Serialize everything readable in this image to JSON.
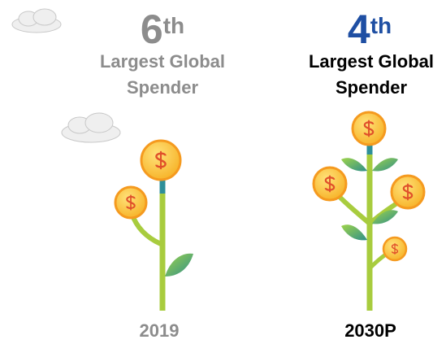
{
  "columns": [
    {
      "rank": "6",
      "suffix": "th",
      "label": "Largest Global Spender",
      "year": "2019"
    },
    {
      "rank": "4",
      "suffix": "th",
      "label": "Largest Global Spender",
      "year": "2030P"
    }
  ]
}
